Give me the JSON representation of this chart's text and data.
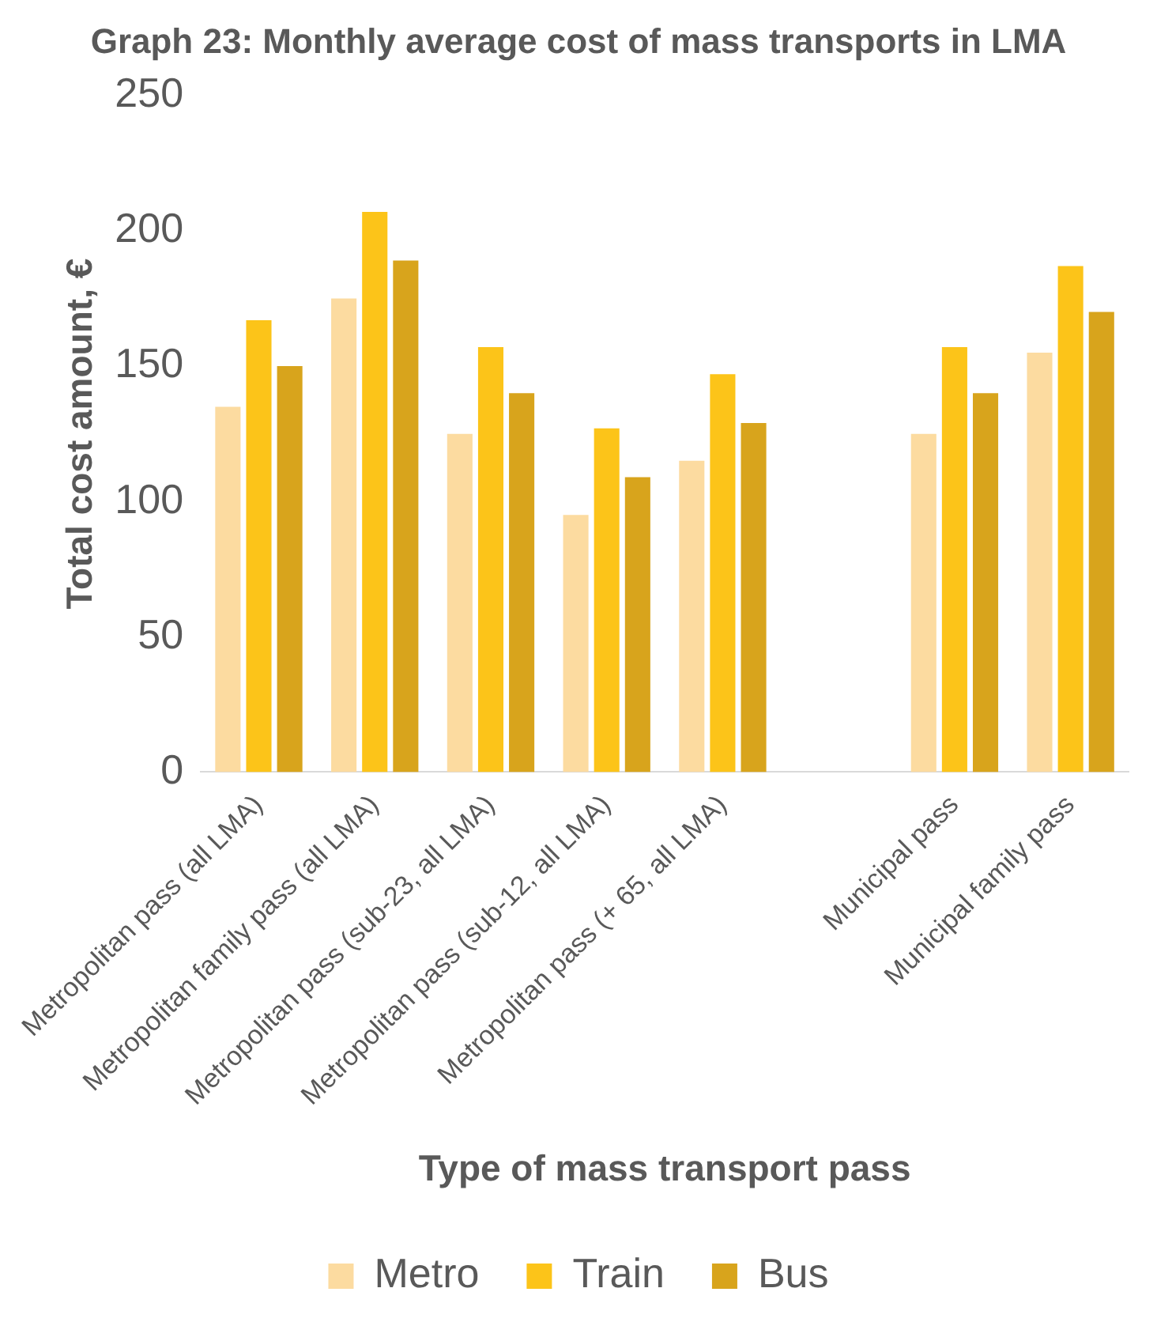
{
  "chart_data": {
    "type": "bar",
    "title": "Graph 23: Monthly average cost of mass transports in LMA",
    "xlabel": "Type of mass transport pass",
    "ylabel": "Total cost amount, €",
    "categories": [
      "Metropolitan pass (all LMA)",
      "Metropolitan family pass (all LMA)",
      "Metropolitan pass (sub-23, all LMA)",
      "Metropolitan pass (sub-12, all LMA)",
      "Metropolitan pass (+ 65, all LMA)",
      null,
      "Municipal pass",
      "Municipal family pass"
    ],
    "series": [
      {
        "name": "Metro",
        "color": "#fcdba0",
        "values": [
          135,
          175,
          125,
          95,
          115,
          null,
          125,
          155
        ]
      },
      {
        "name": "Train",
        "color": "#fcc419",
        "values": [
          167,
          207,
          157,
          127,
          147,
          null,
          157,
          187
        ]
      },
      {
        "name": "Bus",
        "color": "#d8a41c",
        "values": [
          150,
          189,
          140,
          109,
          129,
          null,
          140,
          170
        ]
      }
    ],
    "ylim": [
      0,
      250
    ],
    "yticks": [
      0,
      50,
      100,
      150,
      200,
      250
    ],
    "grid": false,
    "legend": "bottom"
  }
}
